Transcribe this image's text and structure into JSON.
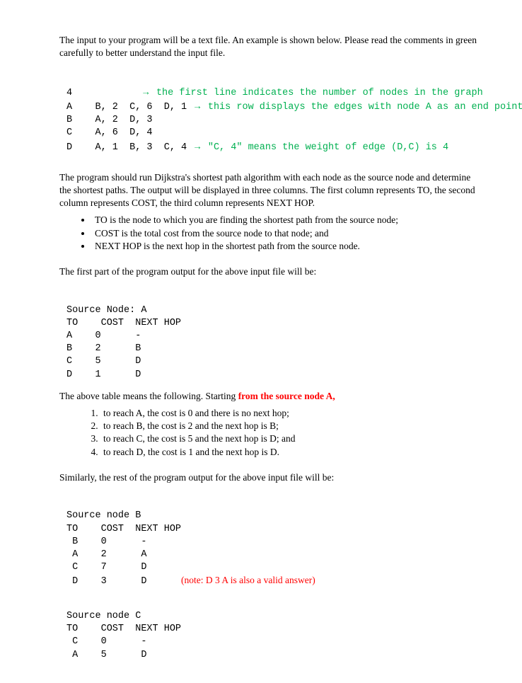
{
  "colors": {
    "text": "#000000",
    "comment_green": "#00b050",
    "emphasis_red": "#ff0000",
    "background": "#ffffff"
  },
  "intro_text": "The input to your program will be a text file. An example is shown below. Please read the comments in green carefully to better understand the input file.",
  "input_example": {
    "line1_code": "4",
    "line1_comment": "the first line indicates the number of nodes in the graph",
    "line2_code": "A    B, 2  C, 6  D, 1",
    "line2_comment": "this row displays the edges with node A as an end point.",
    "line3_code": "B    A, 2  D, 3",
    "line4_code": "C    A, 6  D, 4",
    "line5_code": "D    A, 1  B, 3  C, 4",
    "line5_comment": "\"C, 4\" means the weight of edge (D,C) is 4"
  },
  "algorithm_text": "The program should run Dijkstra's shortest path algorithm with each node as the source node and determine the shortest paths. The output will be displayed in three columns. The first column represents TO, the second column represents COST, the third column represents NEXT HOP.",
  "bullets": {
    "b1": "TO is the node to which you are finding the shortest path from the source node;",
    "b2": "COST is the total cost from the source node to that node; and",
    "b3": "NEXT HOP is the next hop in the shortest path from the source node."
  },
  "first_part_text": "The first part of the program output for the above input file will be:",
  "output_A": {
    "header": "Source Node: A",
    "columns": "TO    COST  NEXT HOP",
    "row1": "A    0      -",
    "row2": "B    2      B",
    "row3": "C    5      D",
    "row4": "D    1      D"
  },
  "table_means_prefix": "The above table means the following. Starting ",
  "table_means_red": "from the source node A,",
  "explain_list": {
    "e1": "to reach A, the cost is 0 and there is no next hop;",
    "e2": "to reach B, the cost is 2 and the next hop is B;",
    "e3": "to reach C, the cost is 5 and the next hop is D; and",
    "e4": "to reach D, the cost is 1 and the next hop is D."
  },
  "similarly_text": "Similarly, the rest of the program output for the above input file will be:",
  "output_B": {
    "header": "Source node B",
    "columns": "TO    COST  NEXT HOP",
    "row1": " B    0      -",
    "row2": " A    2      A",
    "row3": " C    7      D",
    "row4_code": " D    3      D",
    "row4_note": "(note: D 3 A is also a valid answer)"
  },
  "output_C": {
    "header": "Source node C",
    "columns": "TO    COST  NEXT HOP",
    "row1": " C    0      -",
    "row2": " A    5      D"
  }
}
